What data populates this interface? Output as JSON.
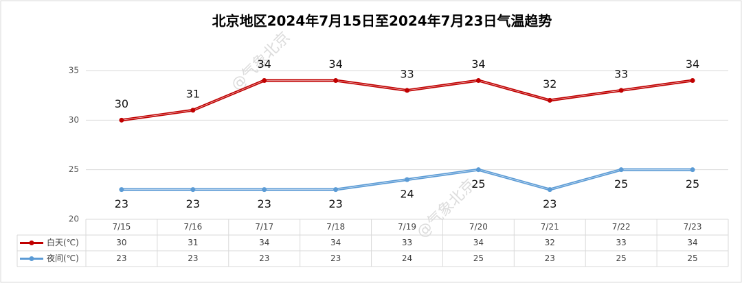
{
  "chart_data": {
    "type": "line",
    "title": "北京地区2024年7月15日至2024年7月23日气温趋势",
    "watermark": "@气象北京",
    "categories": [
      "7/15",
      "7/16",
      "7/17",
      "7/18",
      "7/19",
      "7/20",
      "7/21",
      "7/22",
      "7/23"
    ],
    "series": [
      {
        "name": "白天(℃)",
        "color": "#c00000",
        "values": [
          30,
          31,
          34,
          34,
          33,
          34,
          32,
          33,
          34
        ],
        "label_position": "above"
      },
      {
        "name": "夜间(℃)",
        "color": "#5b9bd5",
        "values": [
          23,
          23,
          23,
          23,
          24,
          25,
          23,
          25,
          25
        ],
        "label_position": "below"
      }
    ],
    "ylim": [
      20,
      35
    ],
    "yticks": [
      20,
      25,
      30,
      35
    ],
    "grid": true,
    "data_table": true
  }
}
